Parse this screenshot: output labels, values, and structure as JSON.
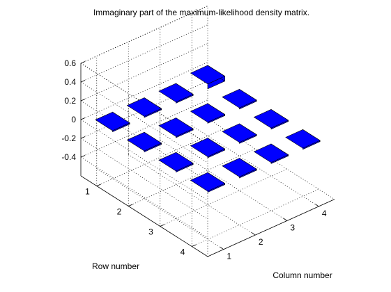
{
  "chart_data": {
    "type": "bar3d",
    "title": "Immaginary part of the maximum-likelihood density matrix.",
    "xlabel": "Column number",
    "ylabel": "Row number",
    "zlabel": "",
    "x_ticks": [
      "1",
      "2",
      "3",
      "4"
    ],
    "y_ticks": [
      "1",
      "2",
      "3",
      "4"
    ],
    "z_ticks": [
      "0.6",
      "0.4",
      "0.2",
      "0",
      "-0.2",
      "-0.4"
    ],
    "zlim": [
      -0.6,
      0.6
    ],
    "grid": true,
    "bar_color": "#0000ff",
    "rows": [
      1,
      2,
      3,
      4
    ],
    "columns": [
      1,
      2,
      3,
      4
    ],
    "values": [
      [
        0.0,
        0.0,
        0.0,
        0.04
      ],
      [
        0.0,
        0.0,
        0.0,
        0.0
      ],
      [
        0.0,
        0.0,
        0.0,
        0.0
      ],
      [
        0.0,
        0.0,
        0.0,
        0.0
      ]
    ]
  }
}
